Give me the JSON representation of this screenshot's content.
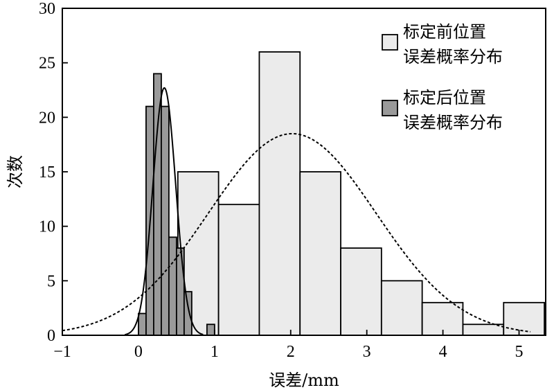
{
  "chart_data": {
    "type": "bar",
    "title": "",
    "xlabel": "误差/mm",
    "ylabel": "次数",
    "xlim": [
      -1,
      5.35
    ],
    "ylim": [
      0,
      30
    ],
    "x_ticks": [
      "−1",
      "0",
      "1",
      "2",
      "3",
      "4",
      "5"
    ],
    "y_ticks": [
      "0",
      "5",
      "10",
      "15",
      "20",
      "25",
      "30"
    ],
    "legend_position": "top-right",
    "grid": false,
    "colors": {
      "before_fill": "#ebebeb",
      "after_fill": "#9a9a9a",
      "stroke": "#000000"
    },
    "series": [
      {
        "name_lines": [
          "标定前位置",
          "误差概率分布"
        ],
        "bin_width": 0.535,
        "bins": [
          {
            "x": 0.785,
            "value": 15
          },
          {
            "x": 1.32,
            "value": 12
          },
          {
            "x": 1.855,
            "value": 26
          },
          {
            "x": 2.39,
            "value": 15
          },
          {
            "x": 2.925,
            "value": 8
          },
          {
            "x": 3.46,
            "value": 5
          },
          {
            "x": 3.995,
            "value": 3
          },
          {
            "x": 4.53,
            "value": 1
          },
          {
            "x": 5.065,
            "value": 3
          }
        ],
        "fit_curve": {
          "style": "dashed",
          "mean": 2.02,
          "sd": 1.1,
          "peak": 18.5
        }
      },
      {
        "name_lines": [
          "标定后位置",
          "误差概率分布"
        ],
        "bin_width": 0.1,
        "bins": [
          {
            "x": 0.05,
            "value": 2
          },
          {
            "x": 0.15,
            "value": 21
          },
          {
            "x": 0.25,
            "value": 24
          },
          {
            "x": 0.35,
            "value": 21
          },
          {
            "x": 0.45,
            "value": 9
          },
          {
            "x": 0.55,
            "value": 8
          },
          {
            "x": 0.65,
            "value": 4
          },
          {
            "x": 0.95,
            "value": 1
          }
        ],
        "fit_curve": {
          "style": "solid",
          "mean": 0.34,
          "sd": 0.15,
          "peak": 22.7
        }
      }
    ]
  }
}
